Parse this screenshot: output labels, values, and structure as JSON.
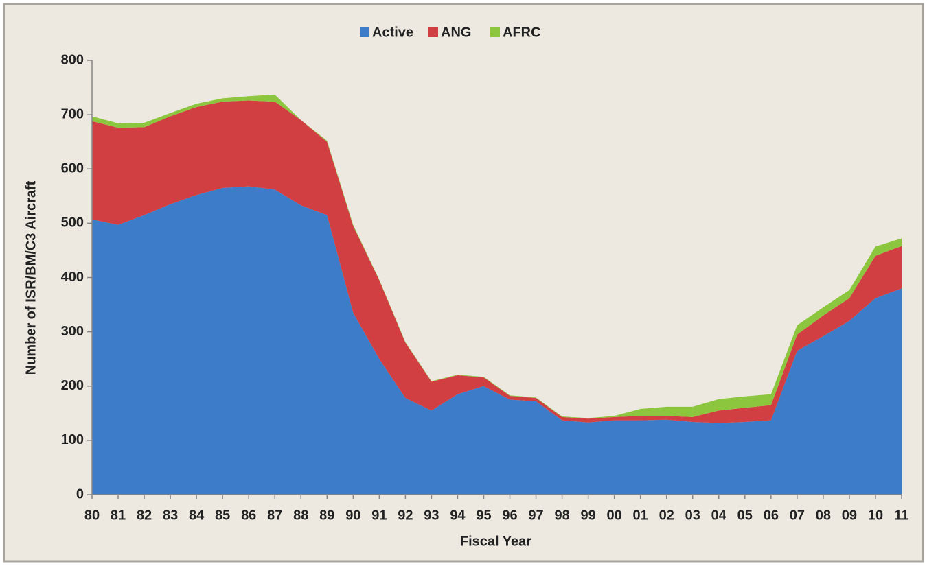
{
  "chart_data": {
    "type": "stacked_area",
    "xlabel": "Fiscal Year",
    "ylabel": "Number of ISR/BM/C3 Aircraft",
    "categories": [
      "80",
      "81",
      "82",
      "83",
      "84",
      "85",
      "86",
      "87",
      "88",
      "89",
      "90",
      "91",
      "92",
      "93",
      "94",
      "95",
      "96",
      "97",
      "98",
      "99",
      "00",
      "01",
      "02",
      "03",
      "04",
      "05",
      "06",
      "07",
      "08",
      "09",
      "10",
      "11"
    ],
    "series": [
      {
        "name": "Active",
        "color": "#3d7cc9",
        "values": [
          507,
          497,
          515,
          535,
          552,
          565,
          568,
          562,
          533,
          515,
          335,
          250,
          178,
          155,
          185,
          200,
          175,
          172,
          137,
          133,
          137,
          137,
          138,
          134,
          132,
          134,
          137,
          265,
          292,
          320,
          362,
          380
        ]
      },
      {
        "name": "ANG",
        "color": "#d13f42",
        "values": [
          181,
          179,
          162,
          162,
          162,
          159,
          158,
          162,
          157,
          135,
          160,
          145,
          102,
          53,
          35,
          16,
          7,
          6,
          6,
          7,
          6,
          8,
          7,
          9,
          23,
          26,
          28,
          30,
          38,
          42,
          78,
          78
        ]
      },
      {
        "name": "AFRC",
        "color": "#8cc63e",
        "values": [
          9,
          8,
          8,
          6,
          6,
          6,
          8,
          13,
          0,
          2,
          2,
          1,
          1,
          1,
          1,
          1,
          1,
          1,
          1,
          1,
          2,
          13,
          17,
          19,
          21,
          21,
          20,
          17,
          15,
          15,
          17,
          14
        ]
      }
    ],
    "ylim": [
      0,
      800
    ],
    "yticks": [
      0,
      100,
      200,
      300,
      400,
      500,
      600,
      700,
      800
    ],
    "legend": "top"
  }
}
